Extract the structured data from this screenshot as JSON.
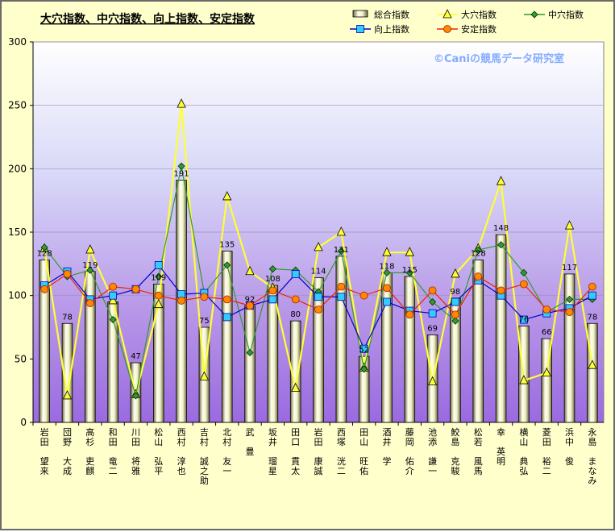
{
  "chart_data": {
    "type": "bar",
    "title": "大穴指数、中穴指数、向上指数、安定指数",
    "watermark": "©Caniの競馬データ研究室",
    "xlabel": "",
    "ylabel": "",
    "ylim": [
      0,
      300
    ],
    "yticks": [
      0,
      50,
      100,
      150,
      200,
      250,
      300
    ],
    "grid": true,
    "legend_position": "top-right",
    "background_gradient": [
      "#ffffff",
      "#d8d8f8",
      "#b898e8",
      "#9a6ae0"
    ],
    "categories": [
      "岩田 望来",
      "団野 大成",
      "高杉 吏麒",
      "和田 竜二",
      "川田 将雅",
      "松山 弘平",
      "西村 淳也",
      "吉村 誠之助",
      "北村 友一",
      "武 豊",
      "坂井 瑠星",
      "田口 貫太",
      "岩田 康誠",
      "西塚 洸二",
      "田山 旺佑",
      "酒井 学",
      "藤岡 佑介",
      "池添 謙一",
      "鮫島 克駿",
      "松若 風馬",
      "幸 英明",
      "横山 典弘",
      "菱田 裕二",
      "浜中 俊",
      "永島 まなみ"
    ],
    "series": [
      {
        "name": "総合指数",
        "type": "bar",
        "color": "#f2f2cc",
        "values": [
          128,
          78,
          119,
          95,
          47,
          109,
          191,
          75,
          135,
          92,
          108,
          80,
          114,
          131,
          52,
          118,
          115,
          69,
          98,
          128,
          148,
          76,
          66,
          117,
          78
        ],
        "labels": [
          "128",
          "78",
          "119",
          "",
          "47",
          "109",
          "191",
          "75",
          "135",
          "92",
          "108",
          "80",
          "114",
          "131",
          "52",
          "118",
          "115",
          "69",
          "98",
          "128",
          "148",
          "76",
          "66",
          "117",
          "78"
        ]
      },
      {
        "name": "大穴指数",
        "type": "line",
        "color": "#ffff33",
        "marker": "triangle",
        "values": [
          137,
          21,
          136,
          96,
          22,
          93,
          251,
          36,
          178,
          119,
          106,
          27,
          138,
          150,
          43,
          134,
          134,
          32,
          117,
          137,
          190,
          33,
          39,
          155,
          45
        ]
      },
      {
        "name": "中穴指数",
        "type": "line",
        "color": "#339933",
        "marker": "diamond",
        "values": [
          138,
          115,
          120,
          81,
          21,
          115,
          202,
          102,
          124,
          55,
          121,
          120,
          103,
          135,
          42,
          118,
          118,
          95,
          80,
          136,
          140,
          118,
          87,
          97,
          97
        ]
      },
      {
        "name": "向上指数",
        "type": "line",
        "color": "#0000cc",
        "marker": "square",
        "values": [
          108,
          119,
          97,
          100,
          105,
          124,
          101,
          102,
          83,
          92,
          97,
          117,
          99,
          99,
          58,
          95,
          88,
          86,
          95,
          112,
          100,
          81,
          86,
          90,
          100
        ]
      },
      {
        "name": "安定指数",
        "type": "line",
        "color": "#ee2200",
        "marker": "circle",
        "values": [
          105,
          117,
          94,
          107,
          105,
          100,
          96,
          99,
          97,
          92,
          104,
          97,
          89,
          107,
          100,
          106,
          85,
          104,
          85,
          115,
          104,
          109,
          89,
          87,
          107
        ]
      }
    ]
  }
}
